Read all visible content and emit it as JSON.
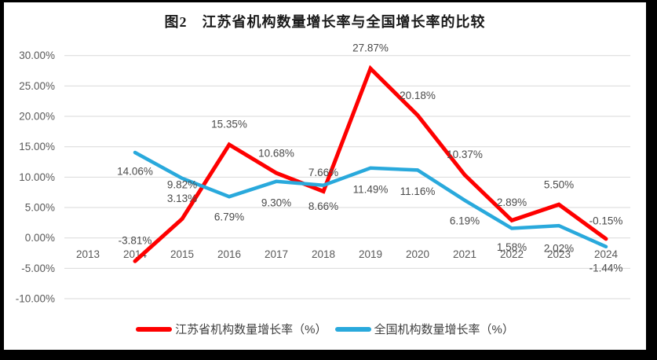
{
  "chart_data": {
    "type": "line",
    "title": "图2　江苏省机构数量增长率与全国增长率的比较",
    "categories": [
      "2013",
      "2014",
      "2015",
      "2016",
      "2017",
      "2018",
      "2019",
      "2020",
      "2021",
      "2022",
      "2023",
      "2024"
    ],
    "series": [
      {
        "name": "江苏省机构数量增长率（%）",
        "color": "#fe0000",
        "stroke_width": 5,
        "values": [
          null,
          -3.81,
          3.13,
          15.35,
          10.68,
          7.66,
          27.87,
          20.18,
          10.37,
          2.89,
          5.5,
          -0.15
        ],
        "label_position": "above",
        "label_dy": [
          null,
          -26,
          -26,
          -26,
          -25,
          -24,
          -26,
          -25,
          -26,
          -23,
          -25,
          -23
        ]
      },
      {
        "name": "全国机构数量增长率（%）",
        "color": "#29a9dc",
        "stroke_width": 4.5,
        "values": [
          null,
          14.06,
          9.82,
          6.79,
          9.3,
          8.66,
          11.49,
          11.16,
          6.19,
          1.58,
          2.02,
          -1.44
        ],
        "label_position": "below",
        "label_dy": [
          null,
          24,
          8,
          26,
          27,
          27,
          27,
          27,
          26,
          24,
          29,
          27
        ]
      }
    ],
    "y_axis": {
      "min": -10,
      "max": 30,
      "step": 5,
      "tick_labels": [
        "30.00%",
        "25.00%",
        "20.00%",
        "15.00%",
        "10.00%",
        "5.00%",
        "0.00%",
        "-5.00%",
        "-10.00%"
      ]
    },
    "x_axis": {
      "tick_labels": [
        "2013",
        "2014",
        "2015",
        "2016",
        "2017",
        "2018",
        "2019",
        "2020",
        "2021",
        "2022",
        "2023",
        "2024"
      ]
    },
    "grid": true,
    "gridline_color": "#d9d9d9",
    "axis_label_color": "#595959",
    "data_label_color": "#4a4a4a",
    "legend_position": "bottom"
  }
}
